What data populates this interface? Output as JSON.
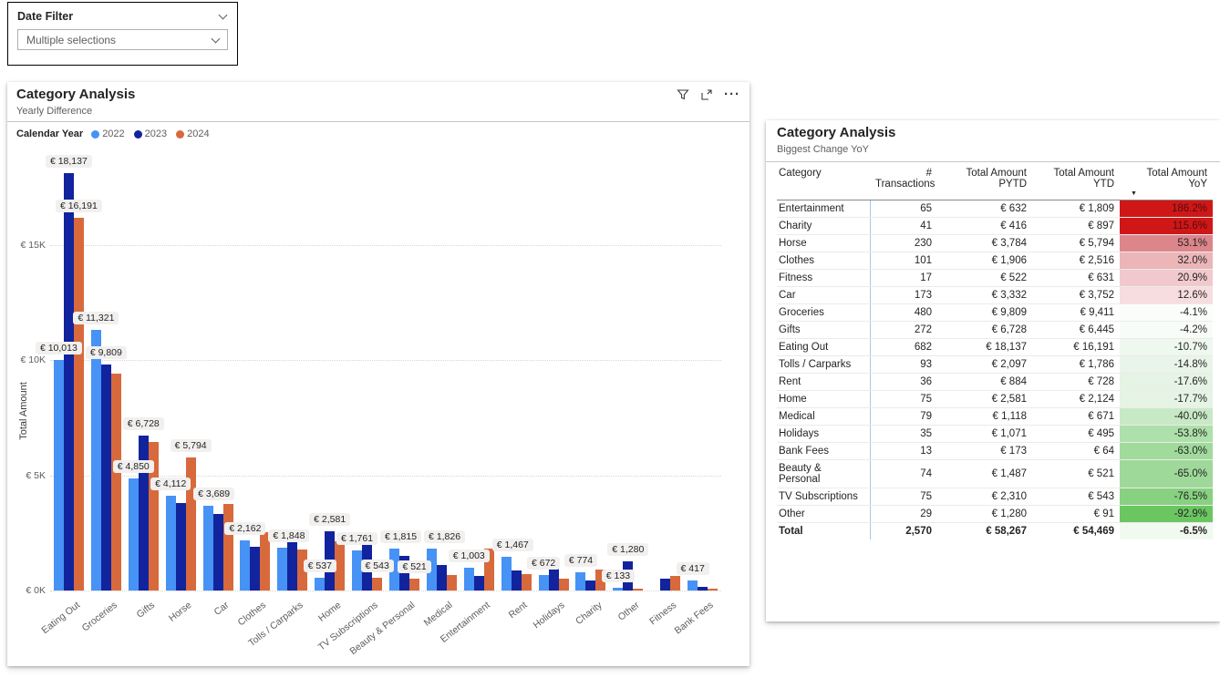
{
  "slicer": {
    "title": "Date Filter",
    "value": "Multiple selections"
  },
  "visual_header_icons": [
    "filter-icon",
    "focus-mode-icon",
    "more-options-icon"
  ],
  "chart_data": [
    {
      "type": "bar",
      "title": "Category Analysis",
      "subtitle": "Yearly Difference",
      "legend_title": "Calendar Year",
      "legend_position": "top-left",
      "grid": true,
      "ylabel": "Total Amount",
      "ylim": [
        0,
        19000
      ],
      "ytick_values": [
        0,
        5000,
        10000,
        15000
      ],
      "ytick_labels": [
        "€ 0K",
        "€ 5K",
        "€ 10K",
        "€ 15K"
      ],
      "currency_prefix": "€ ",
      "categories": [
        "Eating Out",
        "Groceries",
        "Gifts",
        "Horse",
        "Car",
        "Clothes",
        "Tolls / Carparks",
        "Home",
        "TV Subscriptions",
        "Beauty & Personal",
        "Medical",
        "Entertainment",
        "Rent",
        "Holidays",
        "Charity",
        "Other",
        "Fitness",
        "Bank Fees"
      ],
      "series": [
        {
          "name": "2022",
          "color": "#4792F5",
          "values": [
            10013,
            11321,
            4850,
            4112,
            3689,
            2162,
            1848,
            537,
            1761,
            1815,
            1826,
            1003,
            1467,
            672,
            774,
            133,
            0,
            417
          ]
        },
        {
          "name": "2023",
          "color": "#12239E",
          "values": [
            18137,
            9809,
            6728,
            3784,
            3332,
            1906,
            2097,
            2581,
            2310,
            1487,
            1118,
            632,
            884,
            1071,
            416,
            1280,
            522,
            173
          ]
        },
        {
          "name": "2024",
          "color": "#D8693C",
          "values": [
            16191,
            9411,
            6445,
            5794,
            3752,
            2516,
            1786,
            2124,
            543,
            521,
            671,
            1809,
            728,
            495,
            897,
            91,
            631,
            64
          ]
        }
      ],
      "data_labels": [
        [
          0,
          0
        ],
        [
          0,
          1
        ],
        [
          0,
          2
        ],
        [
          1,
          0
        ],
        [
          1,
          1
        ],
        [
          2,
          0
        ],
        [
          2,
          1
        ],
        [
          3,
          0
        ],
        [
          3,
          2
        ],
        [
          4,
          0
        ],
        [
          5,
          0
        ],
        [
          6,
          0
        ],
        [
          7,
          0
        ],
        [
          7,
          1
        ],
        [
          8,
          0
        ],
        [
          8,
          2
        ],
        [
          9,
          0
        ],
        [
          9,
          2
        ],
        [
          10,
          0
        ],
        [
          11,
          0
        ],
        [
          12,
          0
        ],
        [
          13,
          0
        ],
        [
          14,
          0
        ],
        [
          15,
          0
        ],
        [
          15,
          1
        ],
        [
          17,
          0
        ]
      ]
    },
    {
      "type": "table",
      "title": "Category Analysis",
      "subtitle": "Biggest Change YoY",
      "columns": [
        "Category",
        "# Transactions",
        "Total Amount PYTD",
        "Total Amount YTD",
        "Total Amount YoY"
      ],
      "sort_column": "Total Amount YoY",
      "sort_direction": "desc",
      "rows": [
        {
          "category": "Entertainment",
          "transactions": "65",
          "pytd": "€ 632",
          "ytd": "€ 1,809",
          "yoy": "186.2%",
          "yoy_bg": "#D01717",
          "yoy_color": "#4D0F0F"
        },
        {
          "category": "Charity",
          "transactions": "41",
          "pytd": "€ 416",
          "ytd": "€ 897",
          "yoy": "115.6%",
          "yoy_bg": "#D01717",
          "yoy_color": "#4D0F0F"
        },
        {
          "category": "Horse",
          "transactions": "230",
          "pytd": "€ 3,784",
          "ytd": "€ 5,794",
          "yoy": "53.1%",
          "yoy_bg": "#DC858A"
        },
        {
          "category": "Clothes",
          "transactions": "101",
          "pytd": "€ 1,906",
          "ytd": "€ 2,516",
          "yoy": "32.0%",
          "yoy_bg": "#ECB5B8"
        },
        {
          "category": "Fitness",
          "transactions": "17",
          "pytd": "€ 522",
          "ytd": "€ 631",
          "yoy": "20.9%",
          "yoy_bg": "#F1C9CC"
        },
        {
          "category": "Car",
          "transactions": "173",
          "pytd": "€ 3,332",
          "ytd": "€ 3,752",
          "yoy": "12.6%",
          "yoy_bg": "#F7DDDF"
        },
        {
          "category": "Groceries",
          "transactions": "480",
          "pytd": "€ 9,809",
          "ytd": "€ 9,411",
          "yoy": "-4.1%",
          "yoy_bg": "#FAFDFA"
        },
        {
          "category": "Gifts",
          "transactions": "272",
          "pytd": "€ 6,728",
          "ytd": "€ 6,445",
          "yoy": "-4.2%",
          "yoy_bg": "#F8FCF8"
        },
        {
          "category": "Eating Out",
          "transactions": "682",
          "pytd": "€ 18,137",
          "ytd": "€ 16,191",
          "yoy": "-10.7%",
          "yoy_bg": "#EEF8EE"
        },
        {
          "category": "Tolls / Carparks",
          "transactions": "93",
          "pytd": "€ 2,097",
          "ytd": "€ 1,786",
          "yoy": "-14.8%",
          "yoy_bg": "#E8F5E8"
        },
        {
          "category": "Rent",
          "transactions": "36",
          "pytd": "€ 884",
          "ytd": "€ 728",
          "yoy": "-17.6%",
          "yoy_bg": "#E5F4E4"
        },
        {
          "category": "Home",
          "transactions": "75",
          "pytd": "€ 2,581",
          "ytd": "€ 2,124",
          "yoy": "-17.7%",
          "yoy_bg": "#E5F4E4"
        },
        {
          "category": "Medical",
          "transactions": "79",
          "pytd": "€ 1,118",
          "ytd": "€ 671",
          "yoy": "-40.0%",
          "yoy_bg": "#C8E9C5"
        },
        {
          "category": "Holidays",
          "transactions": "35",
          "pytd": "€ 1,071",
          "ytd": "€ 495",
          "yoy": "-53.8%",
          "yoy_bg": "#ADE0AA"
        },
        {
          "category": "Bank Fees",
          "transactions": "13",
          "pytd": "€ 173",
          "ytd": "€ 64",
          "yoy": "-63.0%",
          "yoy_bg": "#A0DB9C"
        },
        {
          "category": "Beauty & Personal",
          "transactions": "74",
          "pytd": "€ 1,487",
          "ytd": "€ 521",
          "yoy": "-65.0%",
          "yoy_bg": "#9ED99A"
        },
        {
          "category": "TV Subscriptions",
          "transactions": "75",
          "pytd": "€ 2,310",
          "ytd": "€ 543",
          "yoy": "-76.5%",
          "yoy_bg": "#87D181"
        },
        {
          "category": "Other",
          "transactions": "29",
          "pytd": "€ 1,280",
          "ytd": "€ 91",
          "yoy": "-92.9%",
          "yoy_bg": "#6BC662"
        }
      ],
      "total": {
        "category": "Total",
        "transactions": "2,570",
        "pytd": "€ 58,267",
        "ytd": "€ 54,469",
        "yoy": "-6.5%",
        "yoy_bg": "#F1FAF0"
      }
    }
  ]
}
